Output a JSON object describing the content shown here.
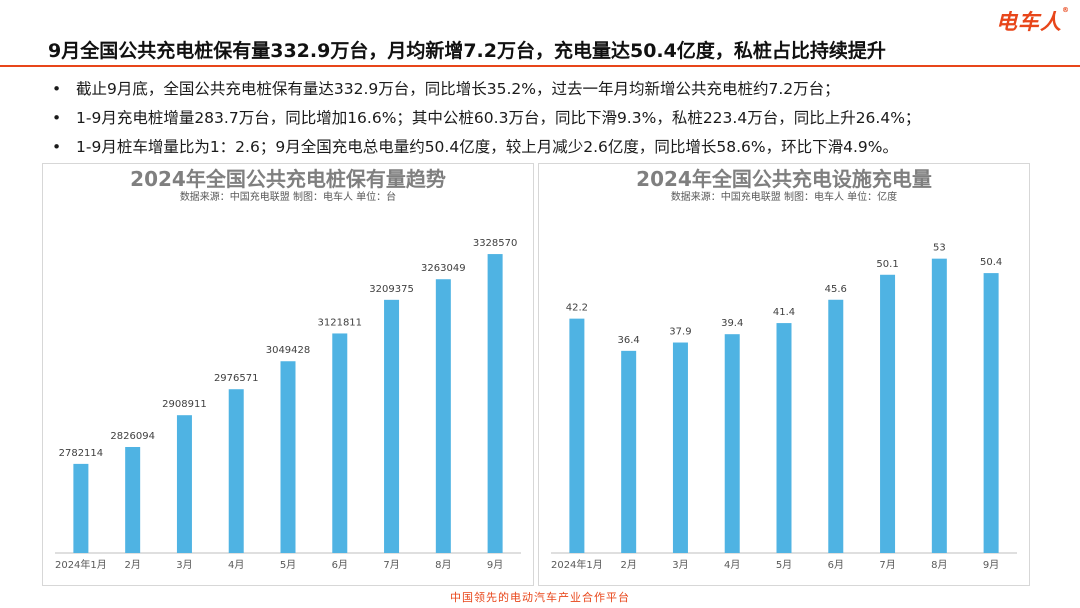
{
  "logo": "电车人",
  "headline": "9月全国公共充电桩保有量332.9万台，月均新增7.2万台，充电量达50.4亿度，私桩占比持续提升",
  "bullets": [
    "截止9月底，全国公共充电桩保有量达332.9万台，同比增长35.2%，过去一年月均新增公共充电桩约7.2万台；",
    "1-9月充电桩增量283.7万台，同比增加16.6%；其中公桩60.3万台，同比下滑9.3%，私桩223.4万台，同比上升26.4%；",
    "1-9月桩车增量比为1：2.6；9月全国充电总电量约50.4亿度，较上月减少2.6亿度，同比增长58.6%，环比下滑4.9%。"
  ],
  "chart_data": [
    {
      "type": "bar",
      "title": "2024年全国公共充电桩保有量趋势",
      "subtitle": "数据来源：中国充电联盟      制图：电车人      单位：台",
      "categories": [
        "2024年1月",
        "2月",
        "3月",
        "4月",
        "5月",
        "6月",
        "7月",
        "8月",
        "9月"
      ],
      "values": [
        2782114,
        2826094,
        2908911,
        2976571,
        3049428,
        3121811,
        3209375,
        3263049,
        3328570
      ],
      "ylim": [
        2550000,
        3360000
      ],
      "grid": false,
      "bar_color": "#4fb3e3"
    },
    {
      "type": "bar",
      "title": "2024年全国公共充电设施充电量",
      "subtitle": "数据来源：中国充电联盟      制图：电车人      单位：亿度",
      "categories": [
        "2024年1月",
        "2月",
        "3月",
        "4月",
        "5月",
        "6月",
        "7月",
        "8月",
        "9月"
      ],
      "values": [
        42.2,
        36.4,
        37.9,
        39.4,
        41.4,
        45.6,
        50.1,
        53,
        50.4
      ],
      "ylim": [
        0,
        56
      ],
      "grid": false,
      "bar_color": "#4fb3e3"
    }
  ],
  "footer": "中国领先的电动汽车产业合作平台",
  "colors": {
    "accent": "#e8461a",
    "bar": "#4fb3e3"
  }
}
